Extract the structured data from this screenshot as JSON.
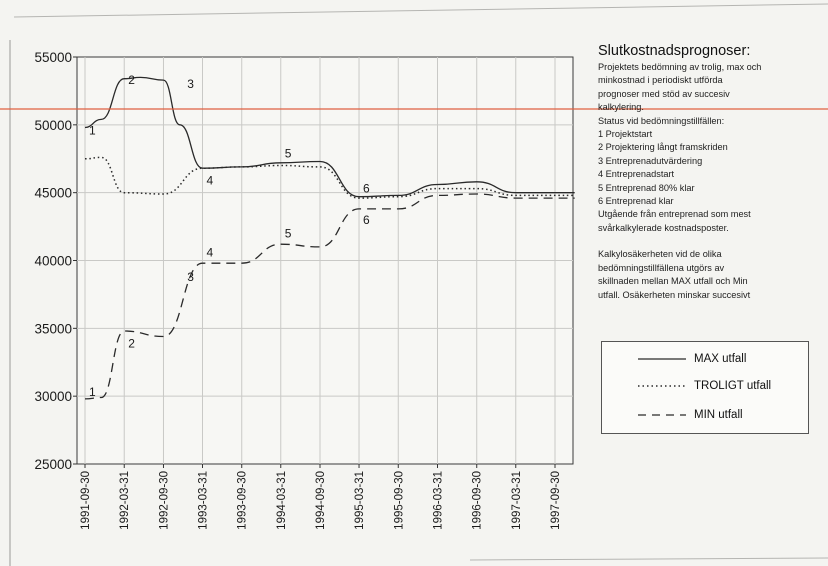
{
  "chart_data": {
    "type": "line",
    "title": "",
    "xlabel": "",
    "ylabel": "",
    "ylim": [
      25000,
      55000
    ],
    "yticks": [
      25000,
      30000,
      35000,
      40000,
      45000,
      50000,
      55000
    ],
    "x_labels": [
      "1991-09-30",
      "1992-03-31",
      "1992-09-30",
      "1993-03-31",
      "1993-09-30",
      "1994-03-31",
      "1994-09-30",
      "1995-03-31",
      "1995-09-30",
      "1996-03-31",
      "1996-09-30",
      "1997-03-31",
      "1997-09-30"
    ],
    "grid": true,
    "legend_position": "bottom-right",
    "series": [
      {
        "name": "MAX utfall",
        "style": "solid",
        "x": [
          "1991-09-30",
          "1991-12-15",
          "1992-03-31",
          "1992-06-15",
          "1992-09-30",
          "1992-12-15",
          "1993-03-31",
          "1993-09-30",
          "1994-03-31",
          "1994-09-30",
          "1995-03-31",
          "1995-09-30",
          "1996-03-31",
          "1996-09-30",
          "1997-03-31",
          "1997-09-30",
          "1997-12-31"
        ],
        "values": [
          49800,
          50400,
          53400,
          53500,
          53300,
          50000,
          46800,
          46900,
          47200,
          47300,
          44700,
          44800,
          45600,
          45800,
          45000,
          45000,
          45000
        ]
      },
      {
        "name": "TROLIGT utfall",
        "style": "dotted",
        "x": [
          "1991-09-30",
          "1991-12-15",
          "1992-03-31",
          "1992-09-30",
          "1993-03-31",
          "1993-09-30",
          "1994-03-31",
          "1994-09-30",
          "1995-03-31",
          "1995-09-30",
          "1996-03-31",
          "1996-09-30",
          "1997-03-31",
          "1997-09-30",
          "1997-12-31"
        ],
        "values": [
          47500,
          47600,
          45000,
          44900,
          46800,
          46900,
          47000,
          46900,
          44600,
          44700,
          45300,
          45300,
          44800,
          44800,
          44800
        ]
      },
      {
        "name": "MIN utfall",
        "style": "dashed",
        "x": [
          "1991-09-30",
          "1991-12-15",
          "1992-03-31",
          "1992-09-30",
          "1993-03-31",
          "1993-09-30",
          "1994-03-31",
          "1994-09-30",
          "1995-03-31",
          "1995-09-30",
          "1996-03-31",
          "1996-09-30",
          "1997-03-31",
          "1997-09-30",
          "1997-12-31"
        ],
        "values": [
          29800,
          29900,
          34800,
          34400,
          39800,
          39800,
          41200,
          41000,
          43800,
          43800,
          44800,
          44900,
          44600,
          44600,
          44600
        ]
      }
    ],
    "annotations": [
      {
        "label": "1",
        "x": "1991-09-30",
        "y": 49600
      },
      {
        "label": "2",
        "x": "1992-03-31",
        "y": 53300
      },
      {
        "label": "3",
        "x": "1992-12-31",
        "y": 53000
      },
      {
        "label": "4",
        "x": "1993-03-31",
        "y": 45900
      },
      {
        "label": "5",
        "x": "1994-03-31",
        "y": 47900
      },
      {
        "label": "6",
        "x": "1995-03-31",
        "y": 45300
      },
      {
        "label": "1",
        "x": "1991-09-30",
        "y": 30300
      },
      {
        "label": "2",
        "x": "1992-03-31",
        "y": 33900
      },
      {
        "label": "3",
        "x": "1992-12-31",
        "y": 38800
      },
      {
        "label": "4",
        "x": "1993-03-31",
        "y": 40600
      },
      {
        "label": "5",
        "x": "1994-03-31",
        "y": 42000
      },
      {
        "label": "6",
        "x": "1995-03-31",
        "y": 43000
      }
    ]
  },
  "side_text": {
    "title": "Slutkostnadsprognoser:",
    "lines": [
      "Projektets bedömning av trolig, max och",
      "minkostnad i periodiskt utförda",
      "prognoser med stöd av succesiv",
      "kalkylering.",
      "Status vid bedömningstillfällen:",
      "1 Projektstart",
      "2 Projektering långt framskriden",
      "3 Entreprenadutvärdering",
      "4 Entreprenadstart",
      "5 Entreprenad 80% klar",
      "6 Entreprenad klar",
      "Utgående från entreprenad som mest",
      "svårkalkylerade kostnadsposter."
    ],
    "lines2": [
      "Kalkylosäkerheten vid de olika",
      "bedömningstillfällena utgörs av",
      "skillnaden mellan MAX utfall och Min",
      "utfall. Osäkerheten minskar succesivt"
    ]
  },
  "legend": {
    "max_label": "MAX utfall",
    "troligt_label": "TROLIGT utfall",
    "min_label": "MIN utfall"
  },
  "colors": {
    "line": "#2a2a2a",
    "grid": "#c9c9c6",
    "overlay_line": "#e06040"
  }
}
